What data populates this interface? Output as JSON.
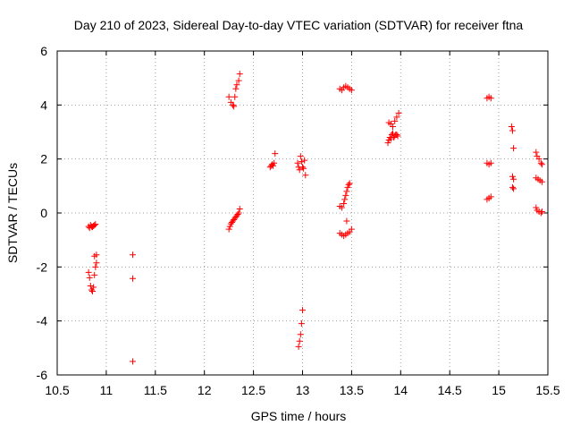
{
  "chart_data": {
    "type": "scatter",
    "title": "Day 210 of 2023, Sidereal Day-to-day VTEC variation (SDTVAR) for receiver ftna",
    "xlabel": "GPS time / hours",
    "ylabel": "SDTVAR / TECUs",
    "xlim": [
      10.5,
      15.5
    ],
    "ylim": [
      -6,
      6
    ],
    "xticks": [
      10.5,
      11,
      11.5,
      12,
      12.5,
      13,
      13.5,
      14,
      14.5,
      15,
      15.5
    ],
    "xtick_labels": [
      "10.5",
      "11",
      "11.5",
      "12",
      "12.5",
      "13",
      "13.5",
      "14",
      "14.5",
      "15",
      "15.5"
    ],
    "yticks": [
      -6,
      -4,
      -2,
      0,
      2,
      4,
      6
    ],
    "ytick_labels": [
      "-6",
      "-4",
      "-2",
      "0",
      "2",
      "4",
      "6"
    ],
    "grid": true,
    "marker": "plus",
    "marker_color": "#ff0000",
    "series": [
      {
        "name": "SDTVAR",
        "points": [
          [
            10.82,
            -0.5
          ],
          [
            10.83,
            -0.55
          ],
          [
            10.84,
            -0.45
          ],
          [
            10.85,
            -0.5
          ],
          [
            10.86,
            -0.52
          ],
          [
            10.87,
            -0.48
          ],
          [
            10.88,
            -0.45
          ],
          [
            10.89,
            -0.42
          ],
          [
            10.82,
            -2.2
          ],
          [
            10.83,
            -2.4
          ],
          [
            10.84,
            -2.7
          ],
          [
            10.85,
            -2.85
          ],
          [
            10.86,
            -2.9
          ],
          [
            10.87,
            -2.75
          ],
          [
            10.88,
            -2.3
          ],
          [
            10.89,
            -2.0
          ],
          [
            10.9,
            -1.85
          ],
          [
            10.88,
            -1.6
          ],
          [
            10.9,
            -1.55
          ],
          [
            11.27,
            -1.55
          ],
          [
            11.27,
            -2.43
          ],
          [
            11.27,
            -5.5
          ],
          [
            12.25,
            4.3
          ],
          [
            12.27,
            4.1
          ],
          [
            12.29,
            4.0
          ],
          [
            12.3,
            3.95
          ],
          [
            12.31,
            4.3
          ],
          [
            12.32,
            4.6
          ],
          [
            12.33,
            4.75
          ],
          [
            12.35,
            4.9
          ],
          [
            12.36,
            5.15
          ],
          [
            12.25,
            -0.6
          ],
          [
            12.26,
            -0.5
          ],
          [
            12.27,
            -0.4
          ],
          [
            12.28,
            -0.35
          ],
          [
            12.29,
            -0.3
          ],
          [
            12.3,
            -0.25
          ],
          [
            12.31,
            -0.2
          ],
          [
            12.32,
            -0.15
          ],
          [
            12.33,
            -0.1
          ],
          [
            12.34,
            -0.05
          ],
          [
            12.35,
            0.0
          ],
          [
            12.36,
            0.15
          ],
          [
            12.67,
            1.7
          ],
          [
            12.68,
            1.75
          ],
          [
            12.69,
            1.8
          ],
          [
            12.7,
            1.75
          ],
          [
            12.71,
            1.85
          ],
          [
            12.72,
            2.2
          ],
          [
            12.95,
            1.85
          ],
          [
            12.96,
            1.7
          ],
          [
            12.97,
            1.6
          ],
          [
            12.98,
            2.1
          ],
          [
            12.99,
            1.9
          ],
          [
            13.0,
            1.7
          ],
          [
            13.01,
            1.65
          ],
          [
            13.02,
            1.95
          ],
          [
            13.03,
            1.4
          ],
          [
            12.96,
            -4.95
          ],
          [
            12.97,
            -4.75
          ],
          [
            12.98,
            -4.5
          ],
          [
            12.99,
            -4.1
          ],
          [
            13.0,
            -3.6
          ],
          [
            13.38,
            4.6
          ],
          [
            13.4,
            4.55
          ],
          [
            13.42,
            4.65
          ],
          [
            13.44,
            4.7
          ],
          [
            13.46,
            4.65
          ],
          [
            13.48,
            4.6
          ],
          [
            13.5,
            4.55
          ],
          [
            13.38,
            0.25
          ],
          [
            13.4,
            0.2
          ],
          [
            13.42,
            0.35
          ],
          [
            13.43,
            0.5
          ],
          [
            13.44,
            0.65
          ],
          [
            13.45,
            0.8
          ],
          [
            13.46,
            0.95
          ],
          [
            13.47,
            1.05
          ],
          [
            13.48,
            1.1
          ],
          [
            13.45,
            -0.3
          ],
          [
            13.38,
            -0.75
          ],
          [
            13.4,
            -0.8
          ],
          [
            13.42,
            -0.85
          ],
          [
            13.44,
            -0.8
          ],
          [
            13.46,
            -0.75
          ],
          [
            13.48,
            -0.7
          ],
          [
            13.5,
            -0.6
          ],
          [
            13.87,
            2.6
          ],
          [
            13.88,
            2.7
          ],
          [
            13.89,
            2.8
          ],
          [
            13.9,
            2.75
          ],
          [
            13.91,
            2.9
          ],
          [
            13.92,
            2.95
          ],
          [
            13.93,
            2.8
          ],
          [
            13.94,
            2.85
          ],
          [
            13.95,
            2.9
          ],
          [
            13.96,
            2.9
          ],
          [
            13.97,
            2.85
          ],
          [
            13.88,
            3.35
          ],
          [
            13.9,
            3.3
          ],
          [
            13.92,
            3.2
          ],
          [
            13.94,
            3.4
          ],
          [
            13.96,
            3.55
          ],
          [
            13.98,
            3.7
          ],
          [
            14.88,
            4.25
          ],
          [
            14.9,
            4.3
          ],
          [
            14.92,
            4.25
          ],
          [
            14.88,
            1.85
          ],
          [
            14.9,
            1.8
          ],
          [
            14.92,
            1.85
          ],
          [
            14.88,
            0.5
          ],
          [
            14.9,
            0.55
          ],
          [
            14.92,
            0.6
          ],
          [
            15.13,
            3.2
          ],
          [
            15.14,
            3.05
          ],
          [
            15.15,
            2.4
          ],
          [
            15.14,
            1.35
          ],
          [
            15.15,
            1.25
          ],
          [
            15.14,
            0.95
          ],
          [
            15.15,
            0.9
          ],
          [
            15.38,
            2.25
          ],
          [
            15.39,
            2.1
          ],
          [
            15.41,
            2.0
          ],
          [
            15.43,
            1.85
          ],
          [
            15.44,
            1.8
          ],
          [
            15.38,
            1.3
          ],
          [
            15.4,
            1.25
          ],
          [
            15.42,
            1.2
          ],
          [
            15.44,
            1.15
          ],
          [
            15.38,
            0.2
          ],
          [
            15.39,
            0.1
          ],
          [
            15.41,
            0.05
          ],
          [
            15.43,
            0.0
          ],
          [
            15.44,
            0.05
          ]
        ]
      }
    ]
  }
}
